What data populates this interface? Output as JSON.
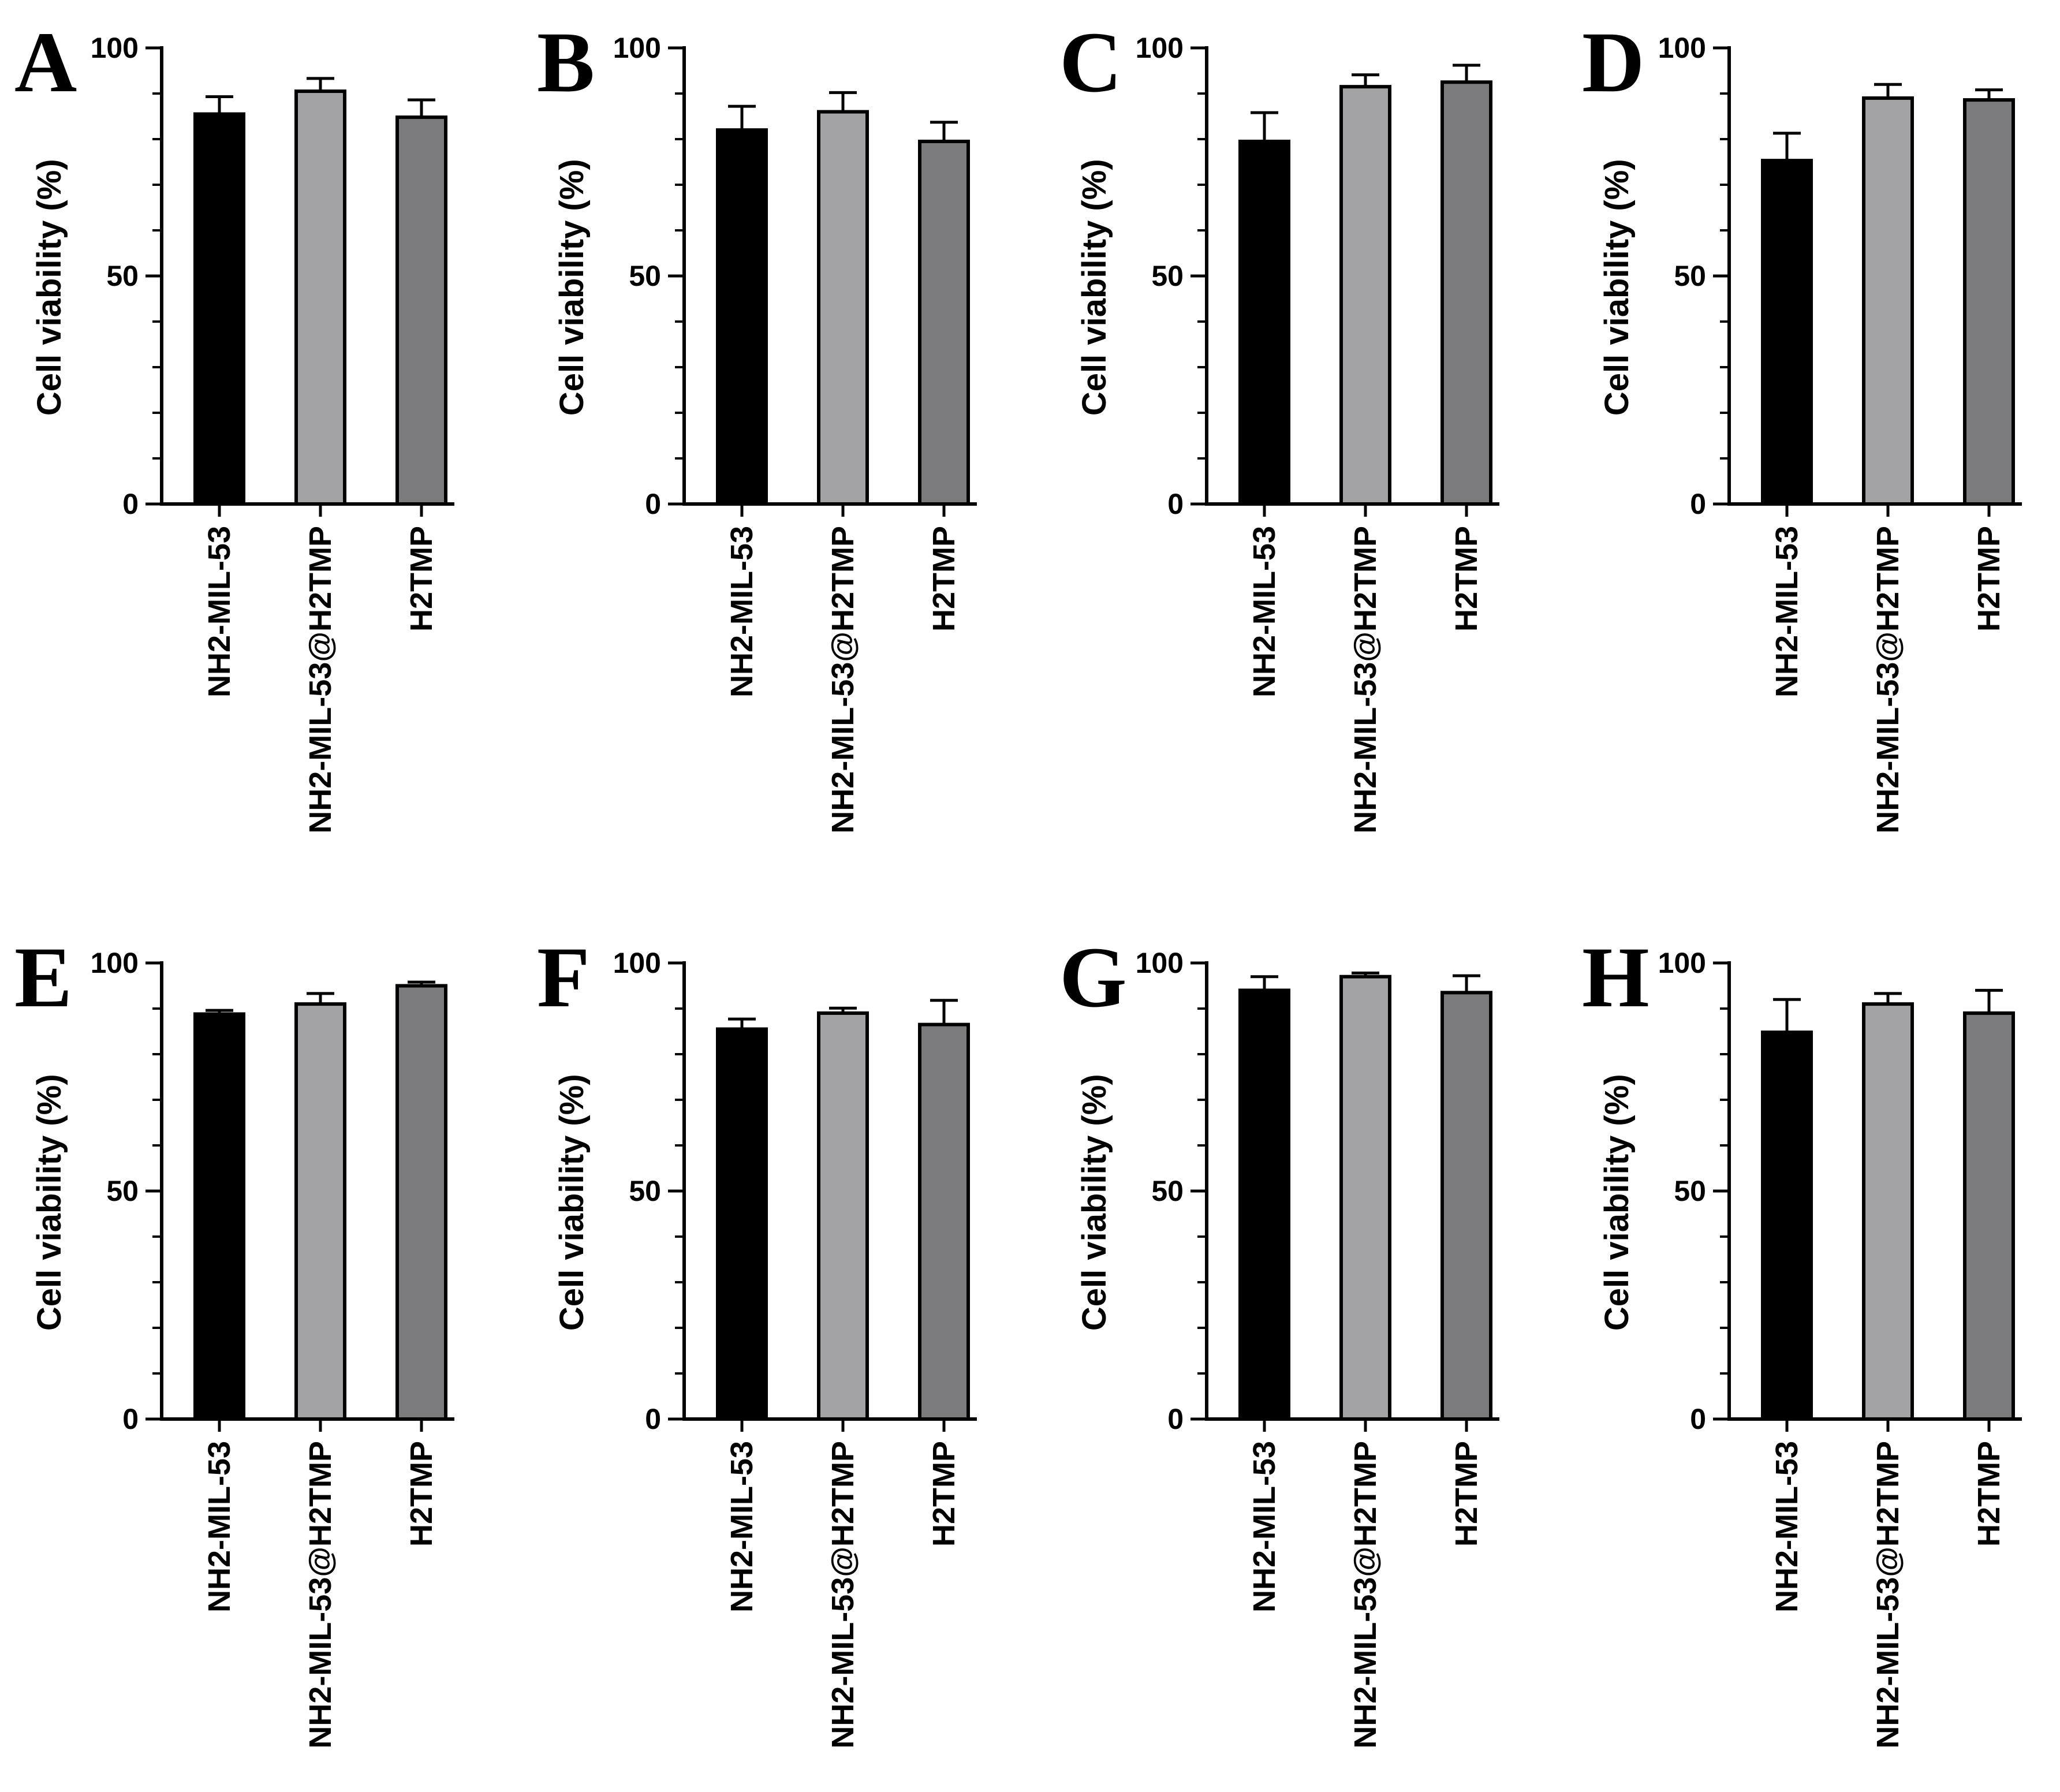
{
  "chart_data": [
    {
      "type": "bar",
      "panel": "A",
      "categories": [
        "NH2-MIL-53",
        "NH2-MIL-53@H2TMP",
        "H2TMP"
      ],
      "values": [
        85.5,
        90.5,
        84.8
      ],
      "errors": [
        3.8,
        2.8,
        3.8
      ],
      "ylabel": "Cell viability (%)",
      "ylim": [
        0,
        100
      ],
      "yticks": [
        "0",
        "50",
        "100"
      ],
      "bar_colors": [
        "#000000",
        "#a3a3a6",
        "#7b7b7d"
      ]
    },
    {
      "type": "bar",
      "panel": "B",
      "categories": [
        "NH2-MIL-53",
        "NH2-MIL-53@H2TMP",
        "H2TMP"
      ],
      "values": [
        82.0,
        86.0,
        79.5
      ],
      "errors": [
        5.2,
        4.2,
        4.2
      ],
      "ylabel": "Cell viability (%)",
      "ylim": [
        0,
        100
      ],
      "yticks": [
        "0",
        "50",
        "100"
      ],
      "bar_colors": [
        "#000000",
        "#a3a3a6",
        "#7b7b7d"
      ]
    },
    {
      "type": "bar",
      "panel": "C",
      "categories": [
        "NH2-MIL-53",
        "NH2-MIL-53@H2TMP",
        "H2TMP"
      ],
      "values": [
        79.5,
        91.5,
        92.5
      ],
      "errors": [
        6.3,
        2.6,
        3.7
      ],
      "ylabel": "Cell viability (%)",
      "ylim": [
        0,
        100
      ],
      "yticks": [
        "0",
        "50",
        "100"
      ],
      "bar_colors": [
        "#000000",
        "#a3a3a6",
        "#7b7b7d"
      ]
    },
    {
      "type": "bar",
      "panel": "D",
      "categories": [
        "NH2-MIL-53",
        "NH2-MIL-53@H2TMP",
        "H2TMP"
      ],
      "values": [
        75.3,
        89.0,
        88.6
      ],
      "errors": [
        6.0,
        3.0,
        2.2
      ],
      "ylabel": "Cell viability (%)",
      "ylim": [
        0,
        100
      ],
      "yticks": [
        "0",
        "50",
        "100"
      ],
      "bar_colors": [
        "#000000",
        "#a3a3a6",
        "#7b7b7d"
      ]
    },
    {
      "type": "bar",
      "panel": "E",
      "categories": [
        "NH2-MIL-53",
        "NH2-MIL-53@H2TMP",
        "H2TMP"
      ],
      "values": [
        88.8,
        91.0,
        95.0
      ],
      "errors": [
        0.8,
        2.3,
        0.8
      ],
      "ylabel": "Cell viability (%)",
      "ylim": [
        0,
        100
      ],
      "yticks": [
        "0",
        "50",
        "100"
      ],
      "bar_colors": [
        "#000000",
        "#a3a3a6",
        "#7b7b7d"
      ]
    },
    {
      "type": "bar",
      "panel": "F",
      "categories": [
        "NH2-MIL-53",
        "NH2-MIL-53@H2TMP",
        "H2TMP"
      ],
      "values": [
        85.5,
        89.0,
        86.5
      ],
      "errors": [
        2.2,
        1.1,
        5.3
      ],
      "ylabel": "Cell viability (%)",
      "ylim": [
        0,
        100
      ],
      "yticks": [
        "0",
        "50",
        "100"
      ],
      "bar_colors": [
        "#000000",
        "#a3a3a6",
        "#7b7b7d"
      ]
    },
    {
      "type": "bar",
      "panel": "G",
      "categories": [
        "NH2-MIL-53",
        "NH2-MIL-53@H2TMP",
        "H2TMP"
      ],
      "values": [
        94.0,
        97.0,
        93.5
      ],
      "errors": [
        3.0,
        0.8,
        3.7
      ],
      "ylabel": "Cell viability (%)",
      "ylim": [
        0,
        100
      ],
      "yticks": [
        "0",
        "50",
        "100"
      ],
      "bar_colors": [
        "#000000",
        "#a3a3a6",
        "#7b7b7d"
      ]
    },
    {
      "type": "bar",
      "panel": "H",
      "categories": [
        "NH2-MIL-53",
        "NH2-MIL-53@H2TMP",
        "H2TMP"
      ],
      "values": [
        84.8,
        91.0,
        89.0
      ],
      "errors": [
        7.2,
        2.3,
        5.0
      ],
      "ylabel": "Cell viability (%)",
      "ylim": [
        0,
        100
      ],
      "yticks": [
        "0",
        "50",
        "100"
      ],
      "bar_colors": [
        "#000000",
        "#a3a3a6",
        "#7b7b7d"
      ]
    }
  ]
}
